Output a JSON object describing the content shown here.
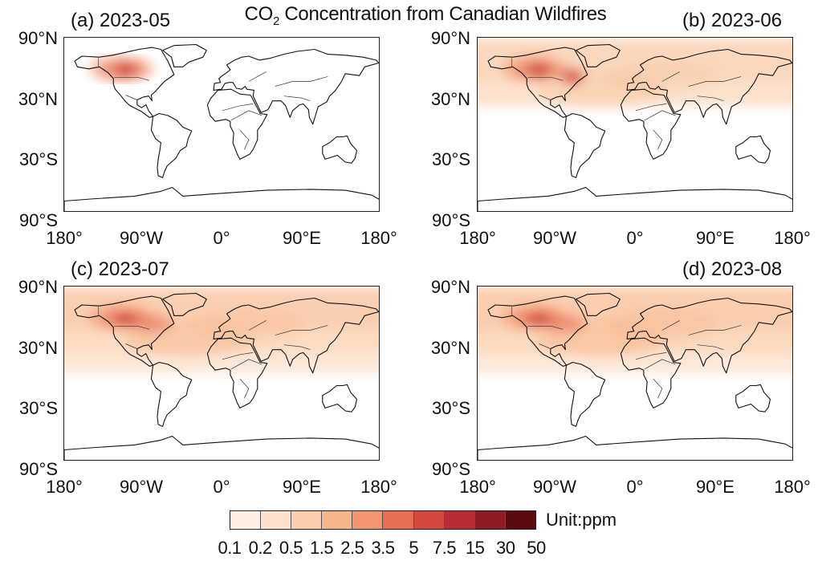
{
  "title": {
    "prefix": "CO",
    "subscript": "2",
    "suffix": " Concentration from Canadian Wildfires"
  },
  "panels": [
    {
      "label": "(a) 2023-05",
      "intensity": 0.25,
      "tropics_band": false
    },
    {
      "label": "(b) 2023-06",
      "intensity": 0.6,
      "tropics_band": false
    },
    {
      "label": "(c) 2023-07",
      "intensity": 0.9,
      "tropics_band": true
    },
    {
      "label": "(d) 2023-08",
      "intensity": 1.0,
      "tropics_band": true
    }
  ],
  "lat_ticks": [
    "90°N",
    "30°N",
    "30°S",
    "90°S"
  ],
  "lon_ticks": [
    "180°",
    "90°W",
    "0°",
    "90°E",
    "180°"
  ],
  "colorbar": {
    "unit": "Unit:ppm",
    "ticks": [
      "0.1",
      "0.2",
      "0.5",
      "1.5",
      "2.5",
      "3.5",
      "5",
      "7.5",
      "15",
      "30",
      "50"
    ],
    "colors": [
      "#fef0e4",
      "#fde2cc",
      "#fbcfae",
      "#f7b58c",
      "#f29570",
      "#e66e55",
      "#d5483f",
      "#b92c35",
      "#8f1a26",
      "#5c0a12"
    ]
  }
}
